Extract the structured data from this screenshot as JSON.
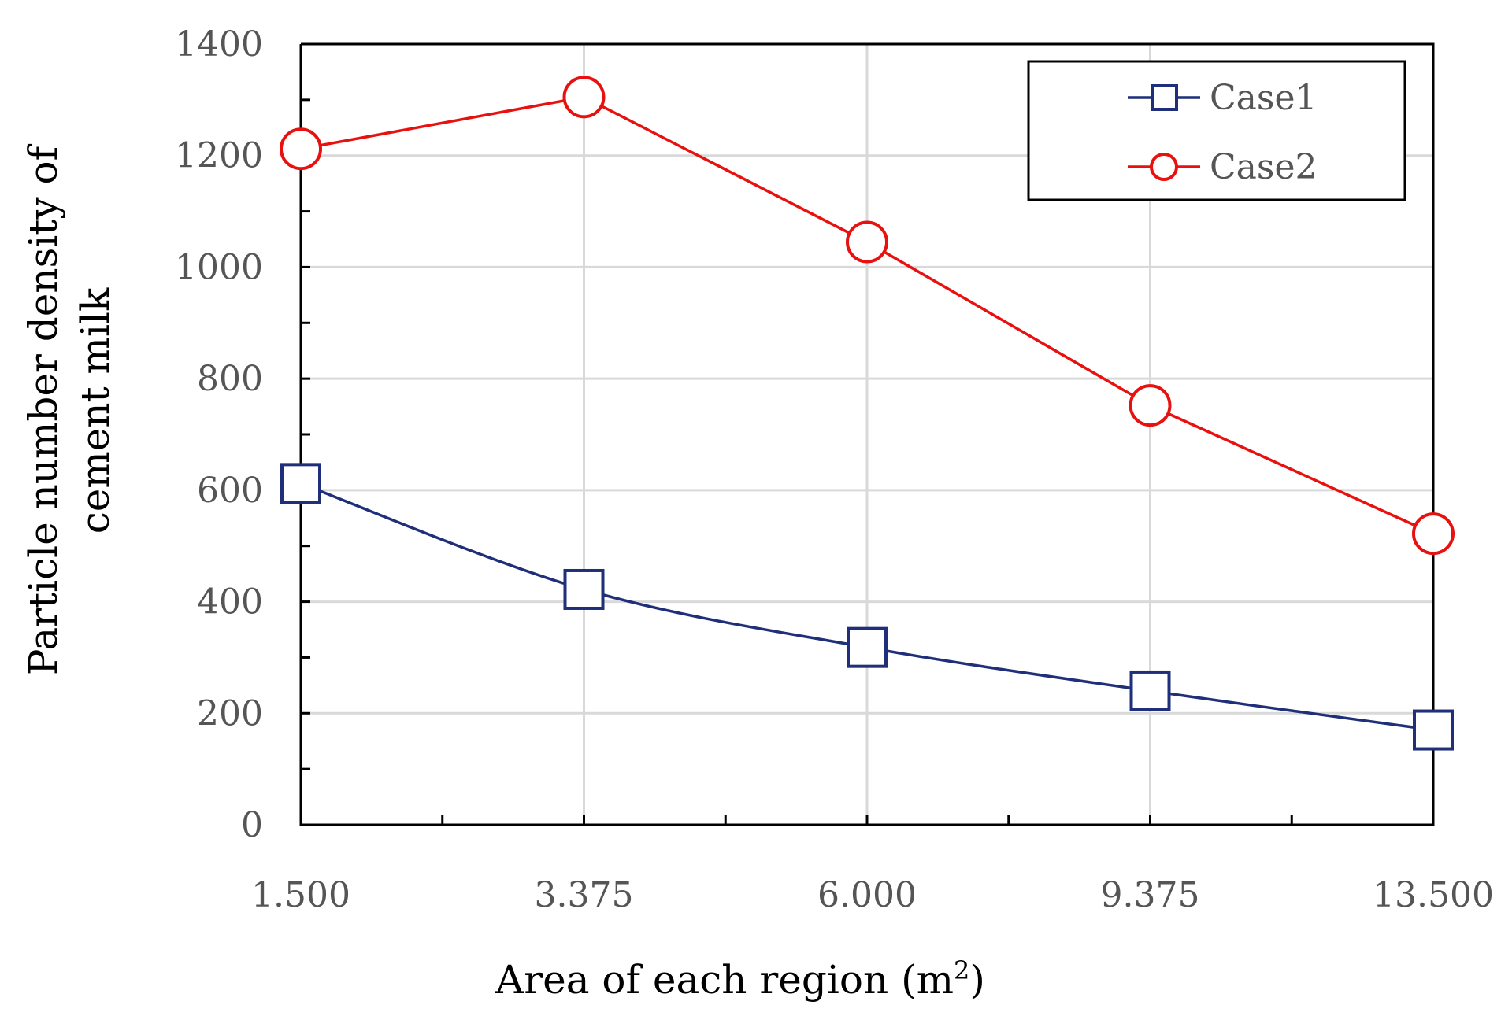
{
  "chart_data": {
    "type": "line",
    "title": "",
    "xlabel": "Area of each region (m",
    "xlabel_superscript": "2",
    "xlabel_suffix": ")",
    "ylabel_line1": "Particle number density of",
    "ylabel_line2": "cement milk",
    "categories": [
      "1.500",
      "3.375",
      "6.000",
      "9.375",
      "13.500"
    ],
    "ylim": [
      0,
      1400
    ],
    "yticks": [
      0,
      200,
      400,
      600,
      800,
      1000,
      1200,
      1400
    ],
    "grid": true,
    "legend_position": "top-right",
    "series": [
      {
        "name": "Case1",
        "marker": "square",
        "color": "#1f2f7a",
        "values": [
          612,
          422,
          318,
          240,
          170
        ]
      },
      {
        "name": "Case2",
        "marker": "circle",
        "color": "#e8110f",
        "values": [
          1212,
          1305,
          1045,
          752,
          522
        ]
      }
    ]
  }
}
